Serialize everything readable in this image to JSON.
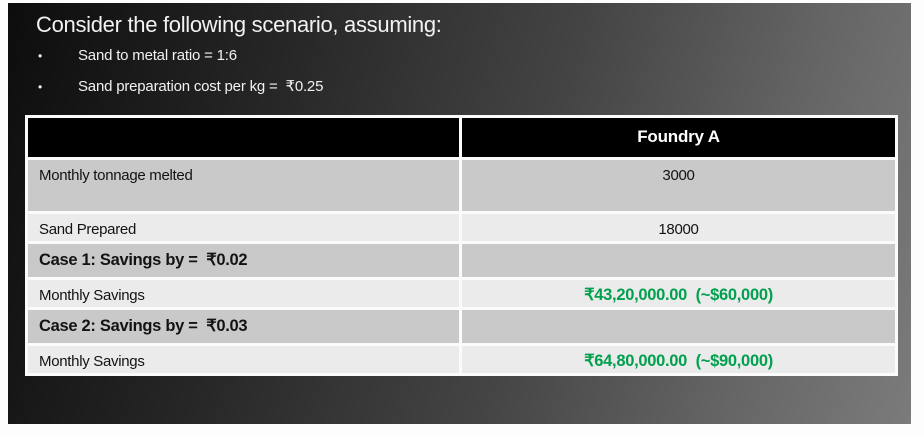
{
  "slide": {
    "title": "Consider the following scenario, assuming:",
    "bullets": [
      {
        "marker": "•",
        "text": "Sand to metal ratio = 1:6"
      },
      {
        "marker": "•",
        "text": "Sand preparation cost per kg =  ₹0.25"
      }
    ]
  },
  "table": {
    "header": {
      "label": "",
      "value": "Foundry A"
    },
    "rows": [
      {
        "label": "Monthly tonnage melted",
        "value": "3000"
      },
      {
        "label": "Sand Prepared",
        "value": "18000"
      },
      {
        "label": "Case 1: Savings by =  ₹0.02",
        "value": ""
      },
      {
        "label": "Monthly Savings",
        "value": "₹43,20,000.00  (~$60,000)"
      },
      {
        "label": "Case 2: Savings by =  ₹0.03",
        "value": ""
      },
      {
        "label": "Monthly Savings",
        "value": "₹64,80,000.00  (~$90,000)"
      }
    ]
  },
  "colors": {
    "savings_green": "#00A04E",
    "row_dark": "#c9c9c9",
    "row_light": "#ebebeb",
    "header_bg": "#000000",
    "slide_gradient_start": "#0d0d0d",
    "slide_gradient_end": "#7b7b7b"
  }
}
